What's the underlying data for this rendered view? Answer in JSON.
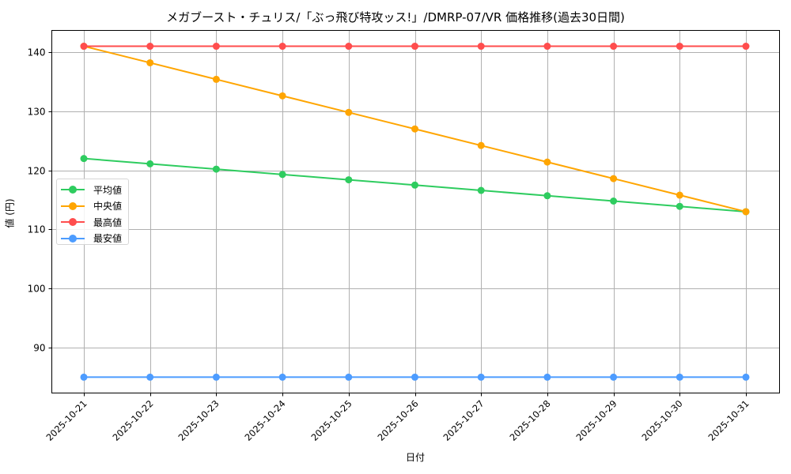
{
  "chart_data": {
    "type": "line",
    "title": "メガブースト・チュリス/「ぶっ飛び特攻ッス!」/DMRP-07/VR 価格推移(過去30日間)",
    "xlabel": "日付",
    "ylabel": "値 (円)",
    "x": [
      "2025-10-21",
      "2025-10-22",
      "2025-10-23",
      "2025-10-24",
      "2025-10-25",
      "2025-10-26",
      "2025-10-27",
      "2025-10-28",
      "2025-10-29",
      "2025-10-30",
      "2025-10-31"
    ],
    "yticks": [
      90,
      100,
      110,
      120,
      130,
      140
    ],
    "ylim": [
      82.2,
      143.9
    ],
    "grid": true,
    "legend_position": "center left",
    "series": [
      {
        "name": "平均値",
        "color": "#2ecc5f",
        "values": [
          122,
          121.1,
          120.2,
          119.3,
          118.4,
          117.5,
          116.6,
          115.7,
          114.8,
          113.9,
          113
        ]
      },
      {
        "name": "中央値",
        "color": "#ffa500",
        "values": [
          141,
          138.2,
          135.4,
          132.6,
          129.8,
          127.0,
          124.2,
          121.4,
          118.6,
          115.8,
          113
        ]
      },
      {
        "name": "最高値",
        "color": "#ff4d4d",
        "values": [
          141,
          141,
          141,
          141,
          141,
          141,
          141,
          141,
          141,
          141,
          141
        ]
      },
      {
        "name": "最安値",
        "color": "#4d9cff",
        "values": [
          85,
          85,
          85,
          85,
          85,
          85,
          85,
          85,
          85,
          85,
          85
        ]
      }
    ]
  },
  "legend": {
    "items": [
      {
        "label": "平均値",
        "color": "#2ecc5f"
      },
      {
        "label": "中央値",
        "color": "#ffa500"
      },
      {
        "label": "最高値",
        "color": "#ff4d4d"
      },
      {
        "label": "最安値",
        "color": "#4d9cff"
      }
    ]
  }
}
